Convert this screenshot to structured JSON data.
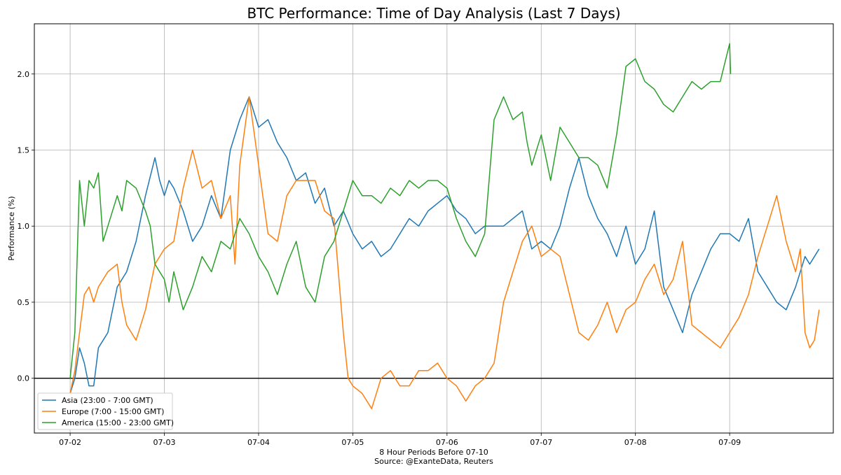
{
  "chart_data": {
    "type": "line",
    "title": "BTC Performance: Time of Day Analysis (Last 7 Days)",
    "xlabel": "8 Hour Periods Before 07-10",
    "xlabel_source": "Source: @ExanteData, Reuters",
    "ylabel": "Performance (%)",
    "x_ticks": [
      "07-02",
      "07-03",
      "07-04",
      "07-05",
      "07-06",
      "07-07",
      "07-08",
      "07-09"
    ],
    "xlim": [
      -0.38,
      8.1
    ],
    "ylim": [
      -0.36,
      2.33
    ],
    "y_ticks": [
      0.0,
      0.5,
      1.0,
      1.5,
      2.0
    ],
    "y_tick_labels": [
      "0.0",
      "0.5",
      "1.0",
      "1.5",
      "2.0"
    ],
    "grid": true,
    "zero_line": true,
    "legend_position": "lower-left",
    "colors": {
      "asia": "#1f77b4",
      "europe": "#ff7f0e",
      "america": "#2ca02c"
    },
    "series": [
      {
        "name": "Asia (23:00 - 7:00 GMT)",
        "color": "#1f77b4",
        "x": [
          0.0,
          0.05,
          0.1,
          0.15,
          0.2,
          0.25,
          0.3,
          0.4,
          0.5,
          0.55,
          0.6,
          0.7,
          0.8,
          0.9,
          0.95,
          1.0,
          1.05,
          1.1,
          1.2,
          1.3,
          1.4,
          1.5,
          1.6,
          1.7,
          1.8,
          1.9,
          2.0,
          2.1,
          2.2,
          2.3,
          2.4,
          2.5,
          2.6,
          2.7,
          2.8,
          2.9,
          3.0,
          3.1,
          3.2,
          3.3,
          3.4,
          3.5,
          3.6,
          3.7,
          3.8,
          3.9,
          4.0,
          4.1,
          4.2,
          4.3,
          4.4,
          4.5,
          4.6,
          4.7,
          4.8,
          4.9,
          5.0,
          5.1,
          5.2,
          5.3,
          5.4,
          5.5,
          5.6,
          5.7,
          5.8,
          5.9,
          6.0,
          6.1,
          6.2,
          6.3,
          6.4,
          6.5,
          6.6,
          6.7,
          6.8,
          6.9,
          7.0,
          7.1,
          7.2,
          7.3,
          7.4,
          7.5,
          7.6,
          7.7,
          7.8,
          7.85,
          7.9,
          7.95
        ],
        "values": [
          -0.1,
          0.0,
          0.2,
          0.1,
          -0.05,
          -0.05,
          0.2,
          0.3,
          0.6,
          0.65,
          0.7,
          0.9,
          1.2,
          1.45,
          1.3,
          1.2,
          1.3,
          1.25,
          1.1,
          0.9,
          1.0,
          1.2,
          1.05,
          1.5,
          1.7,
          1.85,
          1.65,
          1.7,
          1.55,
          1.45,
          1.3,
          1.35,
          1.15,
          1.25,
          1.0,
          1.1,
          0.95,
          0.85,
          0.9,
          0.8,
          0.85,
          0.95,
          1.05,
          1.0,
          1.1,
          1.15,
          1.2,
          1.1,
          1.05,
          0.95,
          1.0,
          1.0,
          1.0,
          1.05,
          1.1,
          0.85,
          0.9,
          0.85,
          1.0,
          1.25,
          1.45,
          1.2,
          1.05,
          0.95,
          0.8,
          1.0,
          0.75,
          0.85,
          1.1,
          0.6,
          0.45,
          0.3,
          0.55,
          0.7,
          0.85,
          0.95,
          0.95,
          0.9,
          1.05,
          0.7,
          0.6,
          0.5,
          0.45,
          0.6,
          0.8,
          0.75,
          0.8,
          0.85
        ]
      },
      {
        "name": "Europe (7:00 - 15:00 GMT)",
        "color": "#ff7f0e",
        "x": [
          0.0,
          0.05,
          0.1,
          0.15,
          0.2,
          0.25,
          0.3,
          0.4,
          0.5,
          0.55,
          0.6,
          0.7,
          0.8,
          0.9,
          1.0,
          1.1,
          1.2,
          1.3,
          1.4,
          1.5,
          1.6,
          1.7,
          1.75,
          1.8,
          1.9,
          2.0,
          2.1,
          2.2,
          2.3,
          2.4,
          2.5,
          2.6,
          2.7,
          2.8,
          2.9,
          2.95,
          3.0,
          3.1,
          3.2,
          3.3,
          3.4,
          3.5,
          3.6,
          3.7,
          3.8,
          3.9,
          4.0,
          4.1,
          4.2,
          4.3,
          4.4,
          4.5,
          4.6,
          4.7,
          4.8,
          4.9,
          5.0,
          5.1,
          5.2,
          5.3,
          5.4,
          5.5,
          5.6,
          5.7,
          5.8,
          5.9,
          6.0,
          6.1,
          6.2,
          6.3,
          6.4,
          6.5,
          6.6,
          6.7,
          6.8,
          6.9,
          7.0,
          7.1,
          7.2,
          7.3,
          7.4,
          7.5,
          7.6,
          7.7,
          7.75,
          7.8,
          7.85,
          7.9,
          7.95
        ],
        "values": [
          -0.1,
          0.05,
          0.3,
          0.55,
          0.6,
          0.5,
          0.6,
          0.7,
          0.75,
          0.5,
          0.35,
          0.25,
          0.45,
          0.75,
          0.85,
          0.9,
          1.25,
          1.5,
          1.25,
          1.3,
          1.05,
          1.2,
          0.75,
          1.4,
          1.85,
          1.4,
          0.95,
          0.9,
          1.2,
          1.3,
          1.3,
          1.3,
          1.1,
          1.05,
          0.3,
          0.0,
          -0.05,
          -0.1,
          -0.2,
          0.0,
          0.05,
          -0.05,
          -0.05,
          0.05,
          0.05,
          0.1,
          0.0,
          -0.05,
          -0.15,
          -0.05,
          0.0,
          0.1,
          0.5,
          0.7,
          0.9,
          1.0,
          0.8,
          0.85,
          0.8,
          0.55,
          0.3,
          0.25,
          0.35,
          0.5,
          0.3,
          0.45,
          0.5,
          0.65,
          0.75,
          0.55,
          0.65,
          0.9,
          0.35,
          0.3,
          0.25,
          0.2,
          0.3,
          0.4,
          0.55,
          0.8,
          1.0,
          1.2,
          0.9,
          0.7,
          0.85,
          0.3,
          0.2,
          0.25,
          0.45
        ]
      },
      {
        "name": "America (15:00 - 23:00 GMT)",
        "color": "#2ca02c",
        "x": [
          0.0,
          0.05,
          0.1,
          0.15,
          0.2,
          0.25,
          0.3,
          0.35,
          0.4,
          0.5,
          0.55,
          0.6,
          0.7,
          0.8,
          0.85,
          0.9,
          1.0,
          1.05,
          1.1,
          1.2,
          1.3,
          1.4,
          1.5,
          1.6,
          1.7,
          1.8,
          1.9,
          2.0,
          2.1,
          2.2,
          2.3,
          2.4,
          2.5,
          2.6,
          2.7,
          2.8,
          2.9,
          3.0,
          3.1,
          3.2,
          3.3,
          3.4,
          3.5,
          3.6,
          3.7,
          3.8,
          3.9,
          4.0,
          4.1,
          4.2,
          4.3,
          4.4,
          4.5,
          4.6,
          4.7,
          4.8,
          4.85,
          4.9,
          5.0,
          5.1,
          5.2,
          5.3,
          5.4,
          5.5,
          5.6,
          5.7,
          5.8,
          5.9,
          6.0,
          6.1,
          6.2,
          6.3,
          6.4,
          6.5,
          6.6,
          6.7,
          6.8,
          6.9,
          7.0,
          7.01
        ],
        "values": [
          0.0,
          0.3,
          1.3,
          1.0,
          1.3,
          1.25,
          1.35,
          0.9,
          1.0,
          1.2,
          1.1,
          1.3,
          1.25,
          1.1,
          1.0,
          0.75,
          0.65,
          0.5,
          0.7,
          0.45,
          0.6,
          0.8,
          0.7,
          0.9,
          0.85,
          1.05,
          0.95,
          0.8,
          0.7,
          0.55,
          0.75,
          0.9,
          0.6,
          0.5,
          0.8,
          0.9,
          1.1,
          1.3,
          1.2,
          1.2,
          1.15,
          1.25,
          1.2,
          1.3,
          1.25,
          1.3,
          1.3,
          1.25,
          1.05,
          0.9,
          0.8,
          0.95,
          1.7,
          1.85,
          1.7,
          1.75,
          1.55,
          1.4,
          1.6,
          1.3,
          1.65,
          1.55,
          1.45,
          1.45,
          1.4,
          1.25,
          1.6,
          2.05,
          2.1,
          1.95,
          1.9,
          1.8,
          1.75,
          1.85,
          1.95,
          1.9,
          1.95,
          1.95,
          2.2,
          2.0
        ]
      }
    ]
  }
}
